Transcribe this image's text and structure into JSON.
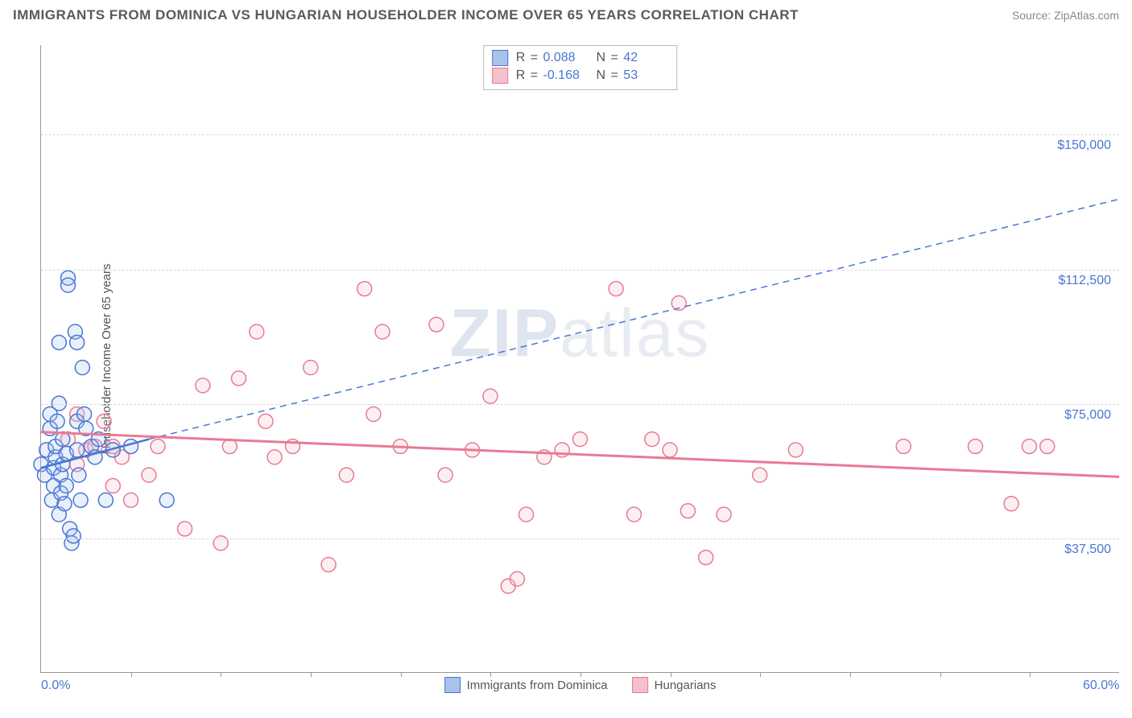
{
  "header": {
    "title": "IMMIGRANTS FROM DOMINICA VS HUNGARIAN HOUSEHOLDER INCOME OVER 65 YEARS CORRELATION CHART",
    "source": "Source: ZipAtlas.com"
  },
  "watermark_text": "ZIPatlas",
  "chart": {
    "type": "scatter",
    "background_color": "#ffffff",
    "grid_color": "#d8d8d8",
    "axis_color": "#999999",
    "ylabel": "Householder Income Over 65 years",
    "label_fontsize": 15,
    "tick_color": "#4a76d4",
    "tick_fontsize": 16,
    "xlim": [
      0,
      60
    ],
    "ylim": [
      0,
      175000
    ],
    "xticks": [
      {
        "v": 0,
        "label": "0.0%"
      },
      {
        "v": 60,
        "label": "60.0%"
      }
    ],
    "xminor": [
      5,
      10,
      15,
      20,
      25,
      30,
      35,
      40,
      45,
      50,
      55
    ],
    "yticks": [
      {
        "v": 37500,
        "label": "$37,500"
      },
      {
        "v": 75000,
        "label": "$75,000"
      },
      {
        "v": 112500,
        "label": "$112,500"
      },
      {
        "v": 150000,
        "label": "$150,000"
      }
    ],
    "marker_radius": 9,
    "marker_stroke_width": 1.5,
    "marker_fill_opacity": 0.25,
    "series": [
      {
        "name": "Immigrants from Dominica",
        "stroke": "#4a76d4",
        "fill": "#a9c2ea",
        "stats": {
          "R": "0.088",
          "N": "42"
        },
        "trend_solid": {
          "x1": 0.0,
          "y1": 57000,
          "x2": 6.0,
          "y2": 65000,
          "width": 2.5
        },
        "trend_dash": {
          "x1": 6.0,
          "y1": 65000,
          "x2": 60.0,
          "y2": 132000,
          "dash": "8 6",
          "width": 1.5
        },
        "points": [
          [
            0.0,
            58000
          ],
          [
            0.2,
            55000
          ],
          [
            0.3,
            62000
          ],
          [
            0.5,
            68000
          ],
          [
            0.5,
            72000
          ],
          [
            0.6,
            48000
          ],
          [
            0.7,
            52000
          ],
          [
            0.7,
            57000
          ],
          [
            0.8,
            60000
          ],
          [
            0.8,
            63000
          ],
          [
            0.9,
            70000
          ],
          [
            1.0,
            75000
          ],
          [
            1.0,
            44000
          ],
          [
            1.1,
            50000
          ],
          [
            1.1,
            55000
          ],
          [
            1.2,
            58000
          ],
          [
            1.2,
            65000
          ],
          [
            1.3,
            47000
          ],
          [
            1.4,
            52000
          ],
          [
            1.4,
            61000
          ],
          [
            1.5,
            110000
          ],
          [
            1.5,
            108000
          ],
          [
            1.6,
            40000
          ],
          [
            1.7,
            36000
          ],
          [
            1.8,
            38000
          ],
          [
            1.9,
            95000
          ],
          [
            2.0,
            70000
          ],
          [
            2.0,
            62000
          ],
          [
            2.1,
            55000
          ],
          [
            2.2,
            48000
          ],
          [
            2.3,
            85000
          ],
          [
            2.4,
            72000
          ],
          [
            2.5,
            68000
          ],
          [
            2.0,
            92000
          ],
          [
            1.0,
            92000
          ],
          [
            2.8,
            63000
          ],
          [
            3.0,
            60000
          ],
          [
            3.2,
            65000
          ],
          [
            3.6,
            48000
          ],
          [
            4.0,
            62000
          ],
          [
            5.0,
            63000
          ],
          [
            7.0,
            48000
          ]
        ]
      },
      {
        "name": "Hungarians",
        "stroke": "#e77b94",
        "fill": "#f3c1cc",
        "stats": {
          "R": "-0.168",
          "N": "53"
        },
        "trend_solid": {
          "x1": 0.0,
          "y1": 67000,
          "x2": 60.0,
          "y2": 54500,
          "width": 3
        },
        "points": [
          [
            1.5,
            65000
          ],
          [
            2.0,
            72000
          ],
          [
            2.0,
            58000
          ],
          [
            2.5,
            62000
          ],
          [
            3.0,
            63000
          ],
          [
            3.5,
            70000
          ],
          [
            4.0,
            52000
          ],
          [
            4.0,
            63000
          ],
          [
            4.5,
            60000
          ],
          [
            5.0,
            48000
          ],
          [
            6.0,
            55000
          ],
          [
            6.5,
            63000
          ],
          [
            8.0,
            40000
          ],
          [
            9.0,
            80000
          ],
          [
            10.0,
            36000
          ],
          [
            10.5,
            63000
          ],
          [
            11.0,
            82000
          ],
          [
            12.0,
            95000
          ],
          [
            12.5,
            70000
          ],
          [
            13.0,
            60000
          ],
          [
            14.0,
            63000
          ],
          [
            15.0,
            85000
          ],
          [
            16.0,
            30000
          ],
          [
            17.0,
            55000
          ],
          [
            18.0,
            107000
          ],
          [
            18.5,
            72000
          ],
          [
            19.0,
            95000
          ],
          [
            20.0,
            63000
          ],
          [
            22.0,
            97000
          ],
          [
            22.5,
            55000
          ],
          [
            24.0,
            62000
          ],
          [
            25.0,
            77000
          ],
          [
            26.0,
            24000
          ],
          [
            26.5,
            26000
          ],
          [
            27.0,
            44000
          ],
          [
            28.0,
            60000
          ],
          [
            29.0,
            62000
          ],
          [
            30.0,
            65000
          ],
          [
            32.0,
            107000
          ],
          [
            33.0,
            44000
          ],
          [
            34.0,
            65000
          ],
          [
            35.0,
            62000
          ],
          [
            35.5,
            103000
          ],
          [
            36.0,
            45000
          ],
          [
            37.0,
            32000
          ],
          [
            38.0,
            44000
          ],
          [
            40.0,
            55000
          ],
          [
            42.0,
            62000
          ],
          [
            48.0,
            63000
          ],
          [
            52.0,
            63000
          ],
          [
            54.0,
            47000
          ],
          [
            55.0,
            63000
          ],
          [
            56.0,
            63000
          ]
        ]
      }
    ]
  },
  "stats_legend": {
    "border_color": "#bbbbbb",
    "rows": [
      {
        "swatch_fill": "#a9c2ea",
        "swatch_stroke": "#4a76d4",
        "R_label": "R",
        "R_val": "0.088",
        "N_label": "N",
        "N_val": "42"
      },
      {
        "swatch_fill": "#f3c1cc",
        "swatch_stroke": "#e77b94",
        "R_label": "R",
        "R_val": "-0.168",
        "N_label": "N",
        "N_val": "53"
      }
    ]
  },
  "bottom_legend": {
    "items": [
      {
        "swatch_fill": "#a9c2ea",
        "swatch_stroke": "#4a76d4",
        "label": "Immigrants from Dominica"
      },
      {
        "swatch_fill": "#f3c1cc",
        "swatch_stroke": "#e77b94",
        "label": "Hungarians"
      }
    ]
  }
}
